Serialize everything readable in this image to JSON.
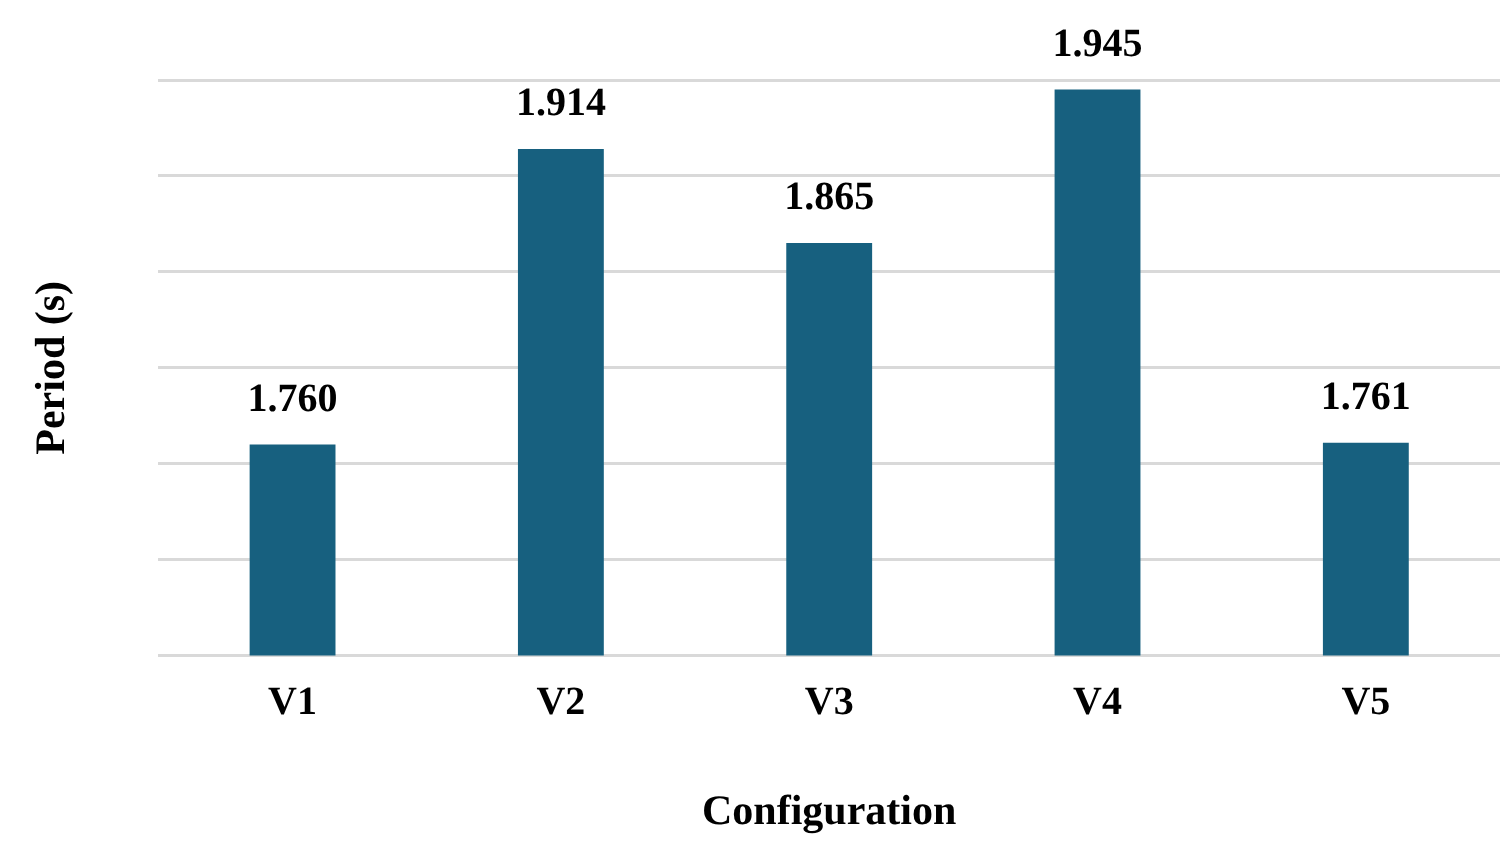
{
  "chart_data": {
    "type": "bar",
    "xlabel": "Configuration",
    "ylabel": "Period (s)",
    "categories": [
      "V1",
      "V2",
      "V3",
      "V4",
      "V5"
    ],
    "values": [
      1.76,
      1.914,
      1.865,
      1.945,
      1.761
    ],
    "value_labels": [
      "1.760",
      "1.914",
      "1.865",
      "1.945",
      "1.761"
    ],
    "color": "#17607f",
    "ylim": [
      1.65,
      1.95
    ],
    "yticks": [
      {
        "value": 1.65,
        "label": null
      },
      {
        "value": 1.7,
        "label": null
      },
      {
        "value": 1.75,
        "label": null
      },
      {
        "value": 1.8,
        "label": null
      },
      {
        "value": 1.85,
        "label": null
      },
      {
        "value": 1.9,
        "label": null
      },
      {
        "value": 1.95,
        "label": null
      }
    ],
    "grid": "y",
    "tick_labels": "x"
  }
}
